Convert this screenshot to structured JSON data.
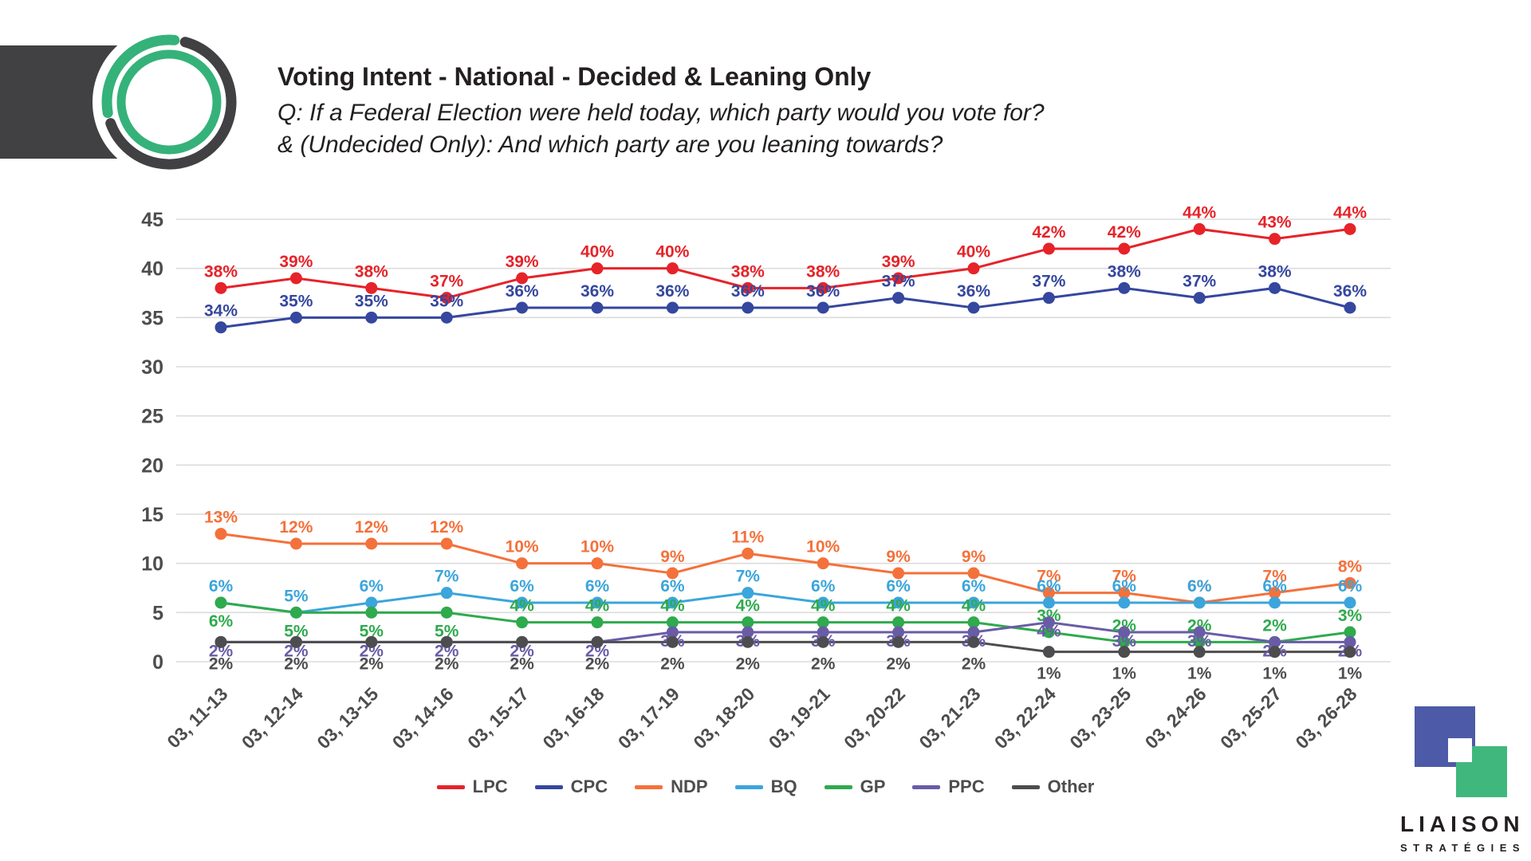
{
  "footer_logo": {
    "name": "LIAISON",
    "tagline": "STRATÉGIES"
  },
  "chart_data": {
    "type": "line",
    "title": "Voting Intent - National - Decided & Leaning Only",
    "subtitle1": "Q: If a Federal Election were held today, which party would you vote for?",
    "subtitle2": "& (Undecided Only): And which party are you leaning towards?",
    "xlabel": "",
    "ylabel": "",
    "ylim": [
      0,
      45
    ],
    "yticks": [
      0,
      5,
      10,
      15,
      20,
      25,
      30,
      35,
      40,
      45
    ],
    "grid": true,
    "legend_position": "bottom",
    "value_suffix": "%",
    "categories": [
      "03, 11-13",
      "03, 12-14",
      "03, 13-15",
      "03, 14-16",
      "03, 15-17",
      "03, 16-18",
      "03, 17-19",
      "03, 18-20",
      "03, 19-21",
      "03, 20-22",
      "03, 21-23",
      "03, 22-24",
      "03, 23-25",
      "03, 24-26",
      "03, 25-27",
      "03, 26-28"
    ],
    "series": [
      {
        "name": "LPC",
        "color": "#e62329",
        "label_position": "above",
        "values": [
          38,
          39,
          38,
          37,
          39,
          40,
          40,
          38,
          38,
          39,
          40,
          42,
          42,
          44,
          43,
          44
        ]
      },
      {
        "name": "CPC",
        "color": "#35479e",
        "label_position": "above",
        "values": [
          34,
          35,
          35,
          35,
          36,
          36,
          36,
          36,
          36,
          37,
          36,
          37,
          38,
          37,
          38,
          36
        ]
      },
      {
        "name": "NDP",
        "color": "#f4713b",
        "label_position": "above",
        "values": [
          13,
          12,
          12,
          12,
          10,
          10,
          9,
          11,
          10,
          9,
          9,
          7,
          7,
          6,
          7,
          8
        ]
      },
      {
        "name": "BQ",
        "color": "#3ba5dc",
        "label_position": "above",
        "values": [
          6,
          5,
          6,
          7,
          6,
          6,
          6,
          7,
          6,
          6,
          6,
          6,
          6,
          6,
          6,
          6
        ]
      },
      {
        "name": "GP",
        "color": "#2faa4d",
        "label_position": "above",
        "label_positions": [
          "below",
          "below",
          "below",
          "below",
          "above",
          "above",
          "above",
          "above",
          "above",
          "above",
          "above",
          "above",
          "above",
          "above",
          "above",
          "above"
        ],
        "values": [
          6,
          5,
          5,
          5,
          4,
          4,
          4,
          4,
          4,
          4,
          4,
          3,
          2,
          2,
          2,
          3
        ]
      },
      {
        "name": "PPC",
        "color": "#6a5ba7",
        "label_position": "below-near",
        "values": [
          2,
          2,
          2,
          2,
          2,
          2,
          3,
          3,
          3,
          3,
          3,
          4,
          3,
          3,
          2,
          2
        ]
      },
      {
        "name": "Other",
        "color": "#4d4d4f",
        "label_position": "below-far",
        "values": [
          2,
          2,
          2,
          2,
          2,
          2,
          2,
          2,
          2,
          2,
          2,
          1,
          1,
          1,
          1,
          1
        ]
      }
    ]
  }
}
